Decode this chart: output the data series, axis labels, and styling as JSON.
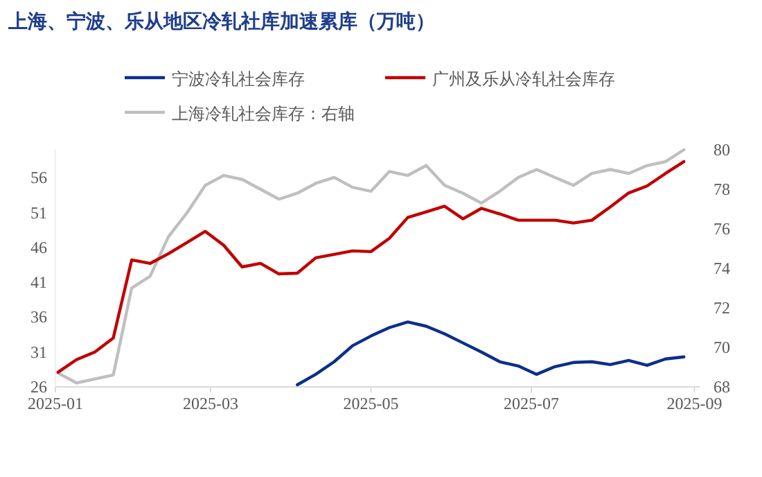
{
  "chart_data": {
    "type": "line",
    "title": "上海、宁波、乐从地区冷轧社库加速累库（万吨）",
    "legend": "top",
    "x": [
      "2025-01-02",
      "2025-01-09",
      "2025-01-16",
      "2025-01-23",
      "2025-01-30",
      "2025-02-06",
      "2025-02-13",
      "2025-02-20",
      "2025-02-27",
      "2025-03-06",
      "2025-03-13",
      "2025-03-20",
      "2025-03-27",
      "2025-04-03",
      "2025-04-10",
      "2025-04-17",
      "2025-04-24",
      "2025-05-01",
      "2025-05-08",
      "2025-05-15",
      "2025-05-22",
      "2025-05-29",
      "2025-06-05",
      "2025-06-12",
      "2025-06-19",
      "2025-06-26",
      "2025-07-03",
      "2025-07-10",
      "2025-07-17",
      "2025-07-24",
      "2025-07-31",
      "2025-08-07",
      "2025-08-14",
      "2025-08-21",
      "2025-08-28"
    ],
    "xlim": [
      "2025-01-01",
      "2025-09-03"
    ],
    "xticks": [
      "2025-01",
      "2025-03",
      "2025-05",
      "2025-07",
      "2025-09"
    ],
    "ylim": [
      26,
      60
    ],
    "yticks": [
      26,
      31,
      36,
      41,
      46,
      51,
      56
    ],
    "y2lim": [
      68,
      80
    ],
    "y2ticks": [
      68,
      70,
      72,
      74,
      76,
      78,
      80
    ],
    "series": [
      {
        "name": "宁波冷轧社会库存",
        "color": "#0c2f8a",
        "values": [
          null,
          null,
          null,
          null,
          null,
          null,
          null,
          null,
          null,
          null,
          null,
          null,
          null,
          26.3,
          27.8,
          29.6,
          31.9,
          33.3,
          34.5,
          35.3,
          34.7,
          33.6,
          32.3,
          31.0,
          29.6,
          29.0,
          27.8,
          28.9,
          29.5,
          29.6,
          29.2,
          29.8,
          29.1,
          30.0,
          30.3
        ]
      },
      {
        "name": "广州及乐从冷轧社会库存",
        "color": "#c00000",
        "values": [
          28.1,
          29.9,
          31.0,
          33.0,
          44.2,
          43.7,
          45.1,
          46.7,
          48.3,
          46.3,
          43.2,
          43.7,
          42.2,
          42.3,
          44.5,
          45.0,
          45.5,
          45.4,
          47.3,
          50.3,
          51.1,
          51.9,
          50.1,
          51.6,
          50.8,
          49.9,
          49.9,
          49.9,
          49.5,
          49.9,
          51.8,
          53.8,
          54.8,
          56.6,
          58.3
        ]
      },
      {
        "name": "上海冷轧社会库存：右轴",
        "color": "#bfbfbf",
        "axis": "y2",
        "values": [
          68.7,
          68.2,
          68.4,
          68.6,
          73.0,
          73.6,
          75.6,
          76.8,
          78.2,
          78.7,
          78.5,
          78.0,
          77.5,
          77.8,
          78.3,
          78.6,
          78.1,
          77.9,
          78.9,
          78.7,
          79.2,
          78.2,
          77.8,
          77.3,
          77.9,
          78.6,
          79.0,
          78.6,
          78.2,
          78.8,
          79.0,
          78.8,
          79.2,
          79.4,
          80.0
        ]
      }
    ]
  }
}
